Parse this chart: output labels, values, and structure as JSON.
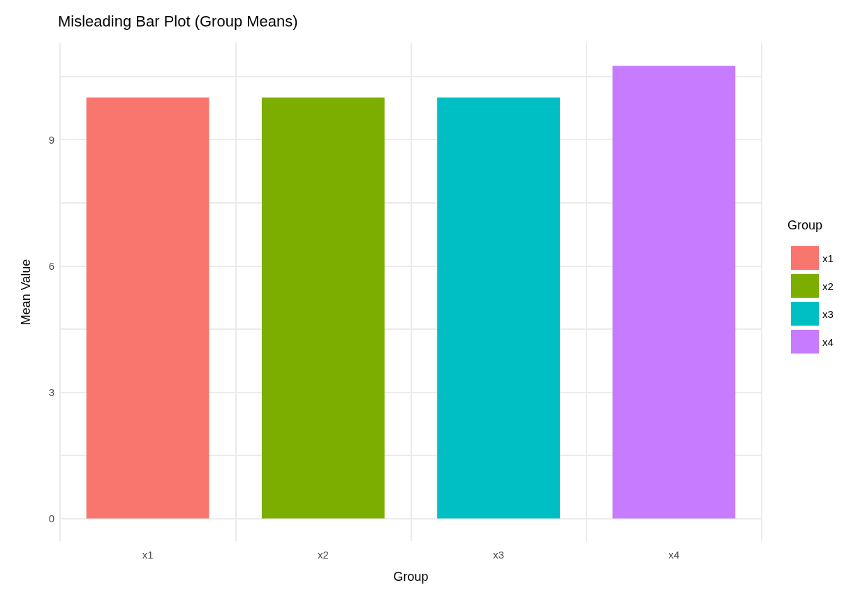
{
  "chart_data": {
    "type": "bar",
    "title": "Misleading Bar Plot (Group Means)",
    "xlabel": "Group",
    "ylabel": "Mean Value",
    "legend_title": "Group",
    "categories": [
      "x1",
      "x2",
      "x3",
      "x4"
    ],
    "series": [
      {
        "name": "x1",
        "color": "#f8766d",
        "values": [
          10.0,
          null,
          null,
          null
        ]
      },
      {
        "name": "x2",
        "color": "#7cae00",
        "values": [
          null,
          10.0,
          null,
          null
        ]
      },
      {
        "name": "x3",
        "color": "#00bfc4",
        "values": [
          null,
          null,
          10.0,
          null
        ]
      },
      {
        "name": "x4",
        "color": "#c77cff",
        "values": [
          null,
          null,
          null,
          10.75
        ]
      }
    ],
    "ylim": [
      -0.54,
      11.29
    ],
    "yticks": [
      0,
      {
        "value": 1.5,
        "label": null
      },
      3,
      {
        "value": 4.5,
        "label": null
      },
      6,
      {
        "value": 7.5,
        "label": null
      },
      9,
      {
        "value": 10.5,
        "label": null
      }
    ],
    "grid": true,
    "legend": "right"
  }
}
